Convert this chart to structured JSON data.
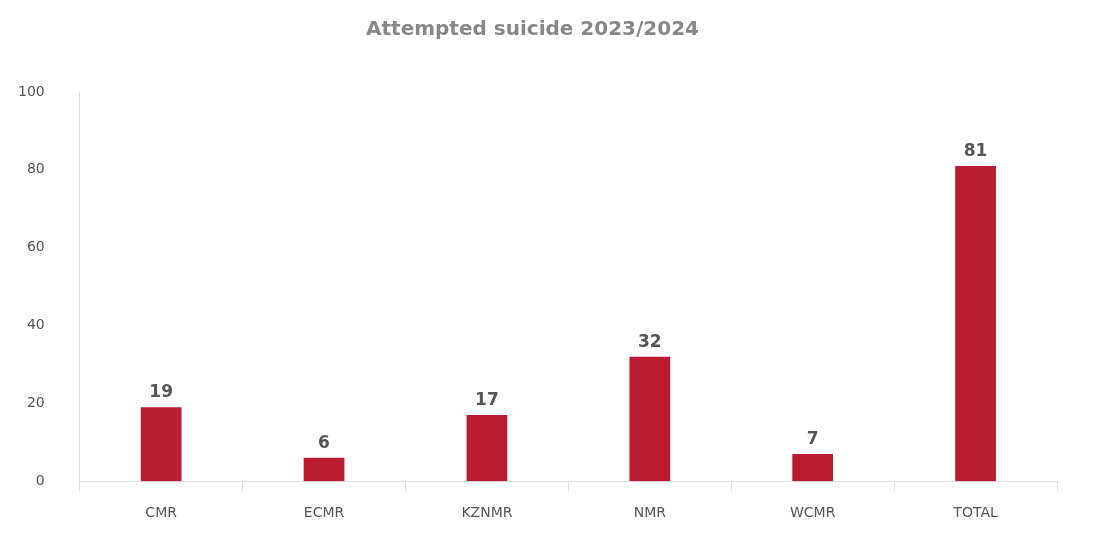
{
  "chart_data": {
    "type": "bar",
    "title": "Attempted suicide 2023/2024",
    "categories": [
      "CMR",
      "ECMR",
      "KZNMR",
      "NMR",
      "WCMR",
      "TOTAL"
    ],
    "values": [
      19,
      6,
      17,
      32,
      7,
      81
    ],
    "color": "#b91c31",
    "ylim": [
      0,
      100
    ],
    "yticks": [
      0,
      20,
      40,
      60,
      80,
      100
    ],
    "grid": false,
    "data_labels": true
  }
}
